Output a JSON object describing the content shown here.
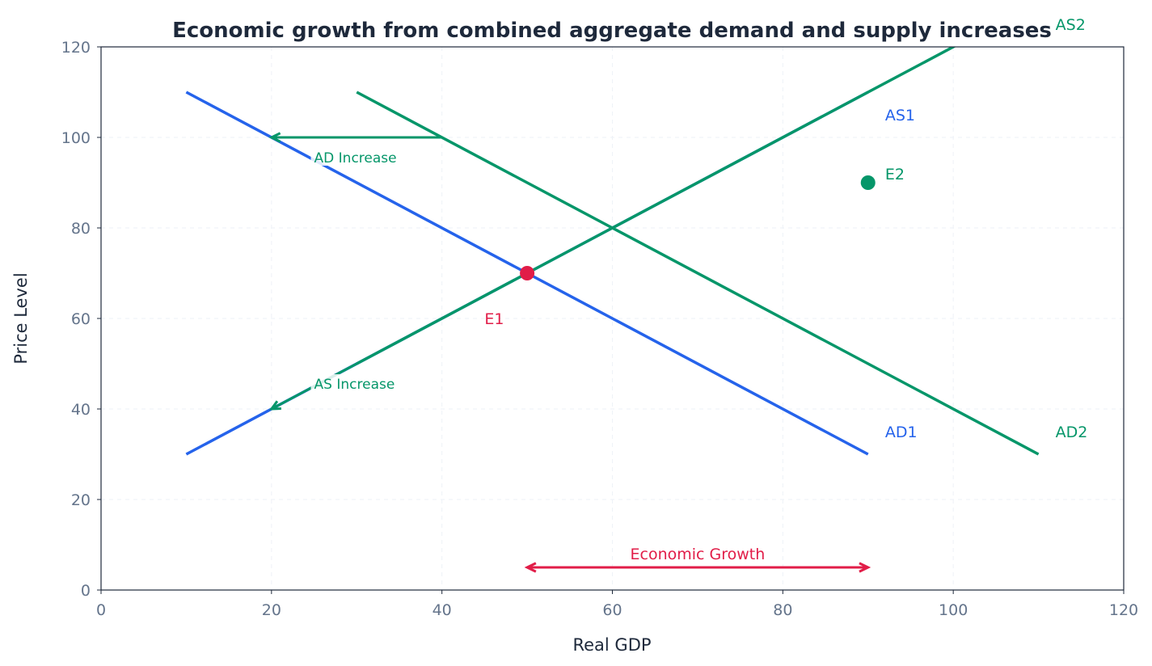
{
  "chart_data": {
    "type": "line",
    "title": "Economic growth from combined aggregate demand and supply increases",
    "xlabel": "Real GDP",
    "ylabel": "Price Level",
    "xlim": [
      0,
      120
    ],
    "ylim": [
      0,
      120
    ],
    "xticks": [
      0,
      20,
      40,
      60,
      80,
      100,
      120
    ],
    "yticks": [
      0,
      20,
      40,
      60,
      80,
      100,
      120
    ],
    "grid": true,
    "colors": {
      "blue": "#2563eb",
      "green": "#059669",
      "red": "#e11d48",
      "title": "#1e293b",
      "tick": "#64748b"
    },
    "series": [
      {
        "name": "AD1",
        "color": "#2563eb",
        "x": [
          10,
          90
        ],
        "y": [
          110,
          30
        ],
        "label_at": [
          92,
          35
        ]
      },
      {
        "name": "AS1",
        "color": "#2563eb",
        "x": [
          10,
          90
        ],
        "y": [
          30,
          110
        ],
        "label_at": [
          92,
          105
        ]
      },
      {
        "name": "AD2",
        "color": "#059669",
        "x": [
          30,
          110
        ],
        "y": [
          110,
          30
        ],
        "label_at": [
          112,
          35
        ]
      },
      {
        "name": "AS2",
        "color": "#059669",
        "x": [
          30,
          110
        ],
        "y": [
          50,
          130
        ],
        "label_at": [
          112,
          125
        ]
      }
    ],
    "points": [
      {
        "name": "E1",
        "x": 50,
        "y": 70,
        "color": "#e11d48",
        "label_at": [
          45,
          60
        ]
      },
      {
        "name": "E2",
        "x": 90,
        "y": 90,
        "color": "#059669",
        "label_at": [
          92,
          92
        ]
      }
    ],
    "annotations": [
      {
        "text": "AD Increase",
        "from": [
          40,
          100
        ],
        "to": [
          20,
          100
        ],
        "text_at": [
          25,
          95
        ],
        "color": "#059669",
        "style": "single"
      },
      {
        "text": "AS Increase",
        "from": [
          30,
          50
        ],
        "to": [
          20,
          40
        ],
        "text_at": [
          25,
          45
        ],
        "color": "#059669",
        "style": "single"
      },
      {
        "text": "Economic Growth",
        "from": [
          50,
          5
        ],
        "to": [
          90,
          5
        ],
        "text_at": [
          70,
          8
        ],
        "color": "#e11d48",
        "style": "double"
      }
    ]
  }
}
